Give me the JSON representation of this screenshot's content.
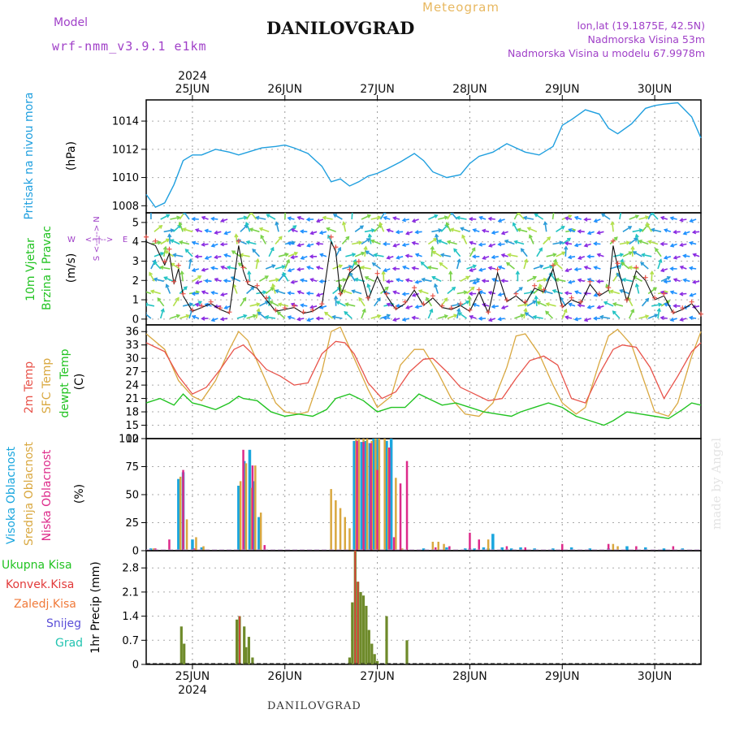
{
  "header": {
    "model_label": "Model",
    "model_name": "wrf-nmm_v3.9.1 e1km",
    "title": "DANILOVGRAD",
    "subtitle": "Meteogram",
    "coords": "lon,lat (19.1875E, 42.5N)",
    "elevation": "Nadmorska Visina 53m",
    "model_elevation": "Nadmorska Visina u modelu 67.9978m",
    "footer": "DANILOVGRAD",
    "credit": "made by Angel"
  },
  "colors": {
    "pressure": "#1f9fdf",
    "temp2m": "#e8534a",
    "sfc": "#d9a840",
    "dewpt": "#22c322",
    "visoka": "#1aa6de",
    "srednja": "#d9a840",
    "niska": "#dd2a8a",
    "precip": "#6e8a2a",
    "konvek": "#e23a3a",
    "purple": "#a040c8"
  },
  "chart_data": [
    {
      "type": "line",
      "name": "pressure-panel",
      "title": "Pritisak na nivou mora",
      "ylabel": "(hPa)",
      "ylim": [
        1007.5,
        1015.5
      ],
      "yticks": [
        1008,
        1010,
        1012,
        1014
      ],
      "x_unit": "days since 2024-06-25 00:00 UTC",
      "xlim": [
        -0.5,
        5.5
      ],
      "x_ticks": [
        "25JUN",
        "26JUN",
        "27JUN",
        "28JUN",
        "29JUN",
        "30JUN"
      ],
      "x_top_year": "2024",
      "series": [
        {
          "name": "Pritisak",
          "x": [
            -0.5,
            -0.4,
            -0.3,
            -0.2,
            -0.1,
            0.0,
            0.1,
            0.25,
            0.4,
            0.5,
            0.6,
            0.75,
            0.9,
            1.0,
            1.1,
            1.25,
            1.4,
            1.5,
            1.6,
            1.7,
            1.8,
            1.9,
            2.0,
            2.1,
            2.25,
            2.4,
            2.5,
            2.6,
            2.75,
            2.9,
            3.0,
            3.1,
            3.25,
            3.4,
            3.5,
            3.6,
            3.75,
            3.9,
            4.0,
            4.1,
            4.25,
            4.4,
            4.5,
            4.6,
            4.75,
            4.9,
            5.0,
            5.1,
            5.25,
            5.4,
            5.5
          ],
          "y": [
            1008.8,
            1007.9,
            1008.2,
            1009.5,
            1011.2,
            1011.6,
            1011.6,
            1012.0,
            1011.8,
            1011.6,
            1011.8,
            1012.1,
            1012.2,
            1012.3,
            1012.1,
            1011.7,
            1010.8,
            1009.7,
            1009.9,
            1009.4,
            1009.7,
            1010.1,
            1010.3,
            1010.6,
            1011.1,
            1011.7,
            1011.2,
            1010.4,
            1010.0,
            1010.2,
            1011.0,
            1011.5,
            1011.8,
            1012.4,
            1012.1,
            1011.8,
            1011.6,
            1012.2,
            1013.7,
            1014.1,
            1014.8,
            1014.5,
            1013.5,
            1013.1,
            1013.8,
            1014.9,
            1015.1,
            1015.2,
            1015.3,
            1014.3,
            1012.8
          ]
        }
      ]
    },
    {
      "type": "line",
      "name": "wind-panel",
      "title": "10m Vjetar Brzina i Pravac",
      "ylabel": "(m/s)",
      "ylim": [
        -0.3,
        5.5
      ],
      "yticks": [
        0,
        1,
        2,
        3,
        4,
        5
      ],
      "compass": {
        "n": "N",
        "w": "W",
        "e": "E",
        "s": "S"
      },
      "series": [
        {
          "name": "brzina",
          "x": [
            -0.5,
            -0.4,
            -0.3,
            -0.25,
            -0.2,
            -0.15,
            -0.1,
            0.0,
            0.1,
            0.2,
            0.3,
            0.4,
            0.5,
            0.55,
            0.6,
            0.7,
            0.8,
            0.9,
            1.0,
            1.1,
            1.2,
            1.3,
            1.4,
            1.5,
            1.55,
            1.6,
            1.7,
            1.8,
            1.9,
            2.0,
            2.1,
            2.2,
            2.3,
            2.4,
            2.5,
            2.6,
            2.7,
            2.8,
            2.9,
            3.0,
            3.1,
            3.2,
            3.3,
            3.4,
            3.5,
            3.6,
            3.7,
            3.8,
            3.9,
            4.0,
            4.1,
            4.2,
            4.3,
            4.4,
            4.5,
            4.55,
            4.6,
            4.7,
            4.8,
            4.9,
            5.0,
            5.1,
            5.2,
            5.3,
            5.4,
            5.5
          ],
          "y": [
            4.0,
            3.8,
            2.8,
            3.4,
            1.8,
            2.6,
            1.2,
            0.4,
            0.6,
            0.8,
            0.5,
            0.3,
            3.8,
            2.5,
            1.8,
            1.6,
            1.0,
            0.4,
            0.5,
            0.6,
            0.3,
            0.4,
            0.7,
            4.0,
            3.5,
            1.2,
            2.4,
            2.8,
            1.0,
            2.2,
            1.2,
            0.5,
            0.8,
            1.5,
            0.7,
            1.1,
            0.6,
            0.5,
            0.7,
            0.4,
            1.4,
            0.3,
            2.4,
            0.9,
            1.2,
            0.8,
            1.6,
            1.4,
            2.6,
            0.6,
            1.0,
            0.8,
            1.8,
            1.2,
            1.5,
            3.8,
            2.7,
            0.9,
            2.5,
            2.0,
            1.0,
            1.2,
            0.3,
            0.5,
            0.8,
            0.2
          ]
        }
      ]
    },
    {
      "type": "line",
      "name": "temp-panel",
      "title": "2m Temp",
      "ylabel": "(C)",
      "series_labels": [
        "2m Temp",
        "SFC Temp",
        "dewpt Temp"
      ],
      "ylim": [
        12,
        37.5
      ],
      "yticks": [
        12,
        15,
        18,
        21,
        24,
        27,
        30,
        33,
        36
      ],
      "series": [
        {
          "name": "2m Temp",
          "x": [
            -0.5,
            -0.3,
            -0.15,
            0.0,
            0.15,
            0.3,
            0.45,
            0.55,
            0.65,
            0.8,
            0.95,
            1.1,
            1.25,
            1.4,
            1.55,
            1.65,
            1.75,
            1.9,
            2.05,
            2.2,
            2.35,
            2.5,
            2.6,
            2.75,
            2.9,
            3.05,
            3.2,
            3.35,
            3.5,
            3.65,
            3.8,
            3.95,
            4.1,
            4.25,
            4.4,
            4.55,
            4.65,
            4.8,
            4.95,
            5.1,
            5.25,
            5.4,
            5.5
          ],
          "y": [
            33.5,
            31.5,
            26,
            22,
            23.5,
            27.5,
            32,
            33,
            31,
            27.5,
            26,
            24,
            24.5,
            31,
            33.8,
            33.5,
            31,
            24.5,
            21,
            22.5,
            27,
            29.8,
            30,
            27,
            23.5,
            22,
            20.5,
            21,
            25.5,
            29.5,
            30.5,
            28.5,
            21,
            20,
            26.5,
            32,
            33,
            32.5,
            28,
            21,
            26,
            31.5,
            33.5
          ]
        },
        {
          "name": "SFC Temp",
          "x": [
            -0.5,
            -0.3,
            -0.15,
            0.0,
            0.1,
            0.25,
            0.4,
            0.5,
            0.6,
            0.75,
            0.9,
            1.0,
            1.15,
            1.25,
            1.4,
            1.5,
            1.6,
            1.75,
            1.9,
            2.0,
            2.15,
            2.25,
            2.4,
            2.5,
            2.65,
            2.8,
            2.95,
            3.1,
            3.25,
            3.4,
            3.5,
            3.6,
            3.75,
            3.9,
            4.0,
            4.15,
            4.25,
            4.4,
            4.5,
            4.6,
            4.75,
            4.9,
            5.0,
            5.15,
            5.25,
            5.4,
            5.5
          ],
          "y": [
            35.5,
            32,
            25,
            21.5,
            20.5,
            25,
            32,
            36,
            34,
            27,
            20,
            18,
            17.5,
            18,
            27,
            36,
            37,
            30,
            23,
            19,
            21.5,
            28.5,
            32,
            32,
            27,
            21,
            17.5,
            17,
            20,
            28,
            35,
            35.5,
            31,
            24,
            20,
            17.5,
            19,
            29,
            35,
            36.5,
            33,
            24,
            18,
            17,
            20,
            30.5,
            36
          ]
        },
        {
          "name": "dewpt Temp",
          "x": [
            -0.5,
            -0.35,
            -0.2,
            -0.1,
            0.0,
            0.1,
            0.25,
            0.4,
            0.5,
            0.55,
            0.7,
            0.85,
            1.0,
            1.15,
            1.3,
            1.45,
            1.55,
            1.7,
            1.85,
            2.0,
            2.15,
            2.3,
            2.45,
            2.55,
            2.7,
            2.85,
            3.0,
            3.15,
            3.3,
            3.45,
            3.55,
            3.7,
            3.85,
            4.0,
            4.15,
            4.3,
            4.45,
            4.55,
            4.7,
            4.85,
            5.0,
            5.15,
            5.3,
            5.4,
            5.5
          ],
          "y": [
            20,
            21,
            19.5,
            22,
            20,
            19.5,
            18.5,
            20,
            21.5,
            21,
            20.5,
            18,
            17,
            17.5,
            17,
            18.5,
            21,
            22,
            20.5,
            18,
            19,
            19,
            22,
            21,
            19.5,
            20,
            19,
            18,
            17.5,
            17,
            18,
            19,
            20,
            19,
            17,
            16,
            15,
            16,
            18,
            17.5,
            17,
            16.5,
            18.5,
            20,
            19.5
          ]
        }
      ]
    },
    {
      "type": "bar",
      "name": "cloud-panel",
      "title": "Oblacnost",
      "series_labels": [
        "Visoka Oblacnost",
        "Srednja Oblacnost",
        "Niska Oblacnost"
      ],
      "ylabel": "(%)",
      "ylim": [
        0,
        100
      ],
      "yticks": [
        0,
        25,
        50,
        75,
        100
      ],
      "series": [
        {
          "name": "Visoka",
          "x": [
            -0.45,
            -0.15,
            -0.1,
            0.0,
            0.1,
            0.5,
            0.56,
            0.62,
            0.66,
            0.72,
            1.75,
            1.78,
            1.83,
            1.87,
            1.92,
            1.96,
            2.0,
            2.1,
            2.15,
            2.5,
            2.75,
            2.95,
            3.0,
            3.05,
            3.15,
            3.2,
            3.25,
            3.35,
            3.45,
            3.55,
            3.7,
            3.9,
            4.1,
            4.3,
            4.5,
            4.7,
            4.9,
            5.1,
            5.3
          ],
          "y": [
            2,
            64,
            70,
            10,
            3,
            58,
            80,
            90,
            62,
            30,
            98,
            98,
            97,
            98,
            96,
            100,
            100,
            98,
            100,
            2,
            3,
            2,
            2,
            2,
            3,
            2,
            15,
            3,
            2,
            3,
            2,
            2,
            3,
            2,
            2,
            4,
            3,
            2,
            2
          ]
        },
        {
          "name": "Srednja",
          "x": [
            -0.42,
            -0.13,
            -0.06,
            0.04,
            0.12,
            0.52,
            0.58,
            0.64,
            0.68,
            0.74,
            1.5,
            1.55,
            1.6,
            1.65,
            1.7,
            1.77,
            1.8,
            1.85,
            1.89,
            1.94,
            1.98,
            2.02,
            2.08,
            2.12,
            2.2,
            2.27,
            2.6,
            2.66,
            2.72,
            3.2,
            4.55,
            4.6
          ],
          "y": [
            2,
            66,
            28,
            12,
            4,
            62,
            78,
            56,
            76,
            34,
            55,
            45,
            38,
            30,
            20,
            100,
            100,
            100,
            100,
            98,
            100,
            100,
            100,
            92,
            65,
            2,
            8,
            8,
            6,
            10,
            6,
            4
          ]
        },
        {
          "name": "Niska",
          "x": [
            -0.4,
            -0.25,
            -0.1,
            0.02,
            0.55,
            0.65,
            0.78,
            1.78,
            1.85,
            1.93,
            2.0,
            2.13,
            2.18,
            2.25,
            2.32,
            2.63,
            2.78,
            3.0,
            3.1,
            3.4,
            3.6,
            4.0,
            4.5,
            4.8,
            5.2
          ],
          "y": [
            2,
            10,
            72,
            2,
            90,
            76,
            5,
            98,
            97,
            96,
            72,
            92,
            12,
            60,
            80,
            3,
            4,
            16,
            10,
            4,
            3,
            6,
            6,
            4,
            4
          ]
        }
      ]
    },
    {
      "type": "bar",
      "name": "precip-panel",
      "title": "1hr Precip",
      "ylabel": "1hr Precip (mm)",
      "ylim": [
        0,
        3.3
      ],
      "yticks": [
        0,
        0.7,
        1.4,
        2.1,
        2.8
      ],
      "legend": [
        "Ukupna Kisa",
        "Konvek.Kisa",
        "Zaledj.Kisa",
        "Snijeg",
        "Grad"
      ],
      "series": [
        {
          "name": "Ukupna Kisa",
          "x": [
            -0.12,
            -0.09,
            0.48,
            0.51,
            0.56,
            0.58,
            0.61,
            0.65,
            1.7,
            1.73,
            1.76,
            1.79,
            1.82,
            1.85,
            1.88,
            1.91,
            1.94,
            1.97,
            2.0,
            2.1,
            2.32
          ],
          "y": [
            1.1,
            0.6,
            1.3,
            1.4,
            1.1,
            0.5,
            0.8,
            0.2,
            0.2,
            1.8,
            3.3,
            2.4,
            2.1,
            2.0,
            1.7,
            1.0,
            0.6,
            0.3,
            0.1,
            1.4,
            0.7
          ]
        },
        {
          "name": "Konvek.Kisa",
          "x": [
            0.51,
            1.76,
            1.79
          ],
          "y": [
            1.4,
            3.3,
            2.4
          ]
        }
      ]
    }
  ]
}
